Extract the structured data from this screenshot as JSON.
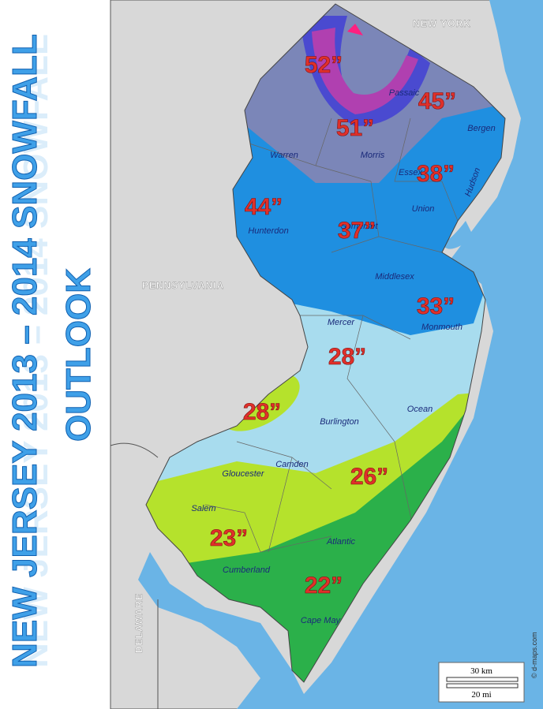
{
  "title": {
    "line1": "NEW JERSEY 2013 – 2014 SNOWFALL",
    "line2": "OUTLOOK"
  },
  "neighbors": [
    "NEW YORK",
    "PENNSYLVANIA",
    "DELAWARE"
  ],
  "counties": [
    "Warren",
    "Morris",
    "Passaic",
    "Bergen",
    "Hudson",
    "Hunterdon",
    "Somerset",
    "Union",
    "Middlesex",
    "Mercer",
    "Monmouth",
    "Burlington",
    "Ocean",
    "Gloucester",
    "Camden",
    "Salem",
    "Atlantic",
    "Cumberland",
    "Cape May",
    "Essex"
  ],
  "snowfall": [
    "52”",
    "45”",
    "51”",
    "38”",
    "44”",
    "37”",
    "33”",
    "28”",
    "28”",
    "26”",
    "23”",
    "22”"
  ],
  "scale": {
    "km": "30 km",
    "mi": "20 mi"
  },
  "credit": "© d-maps.com"
}
